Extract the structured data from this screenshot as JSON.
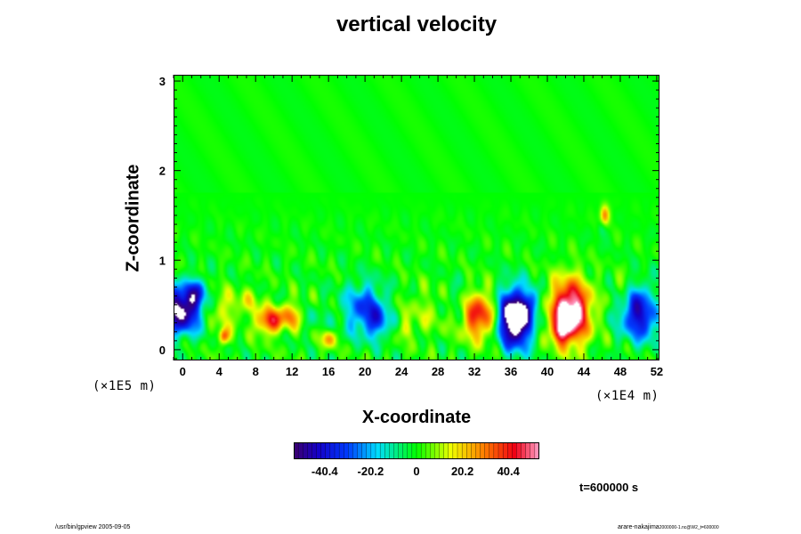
{
  "chart_data": {
    "type": "heatmap",
    "title": "vertical velocity",
    "xlabel": "X-coordinate",
    "ylabel": "Z-coordinate",
    "x_scale_label": "(×1E4 m)",
    "y_scale_label": "(×1E5 m)",
    "xlim": [
      -1,
      52.3
    ],
    "ylim": [
      -0.12,
      3.07
    ],
    "xticks": [
      0,
      4,
      8,
      12,
      16,
      20,
      24,
      28,
      32,
      36,
      40,
      44,
      48,
      52
    ],
    "yticks": [
      0,
      1,
      2,
      3
    ],
    "colorbar": {
      "range": [
        -54,
        54
      ],
      "ticks": [
        -40.4,
        -20.2,
        0,
        20.2,
        40.4
      ]
    },
    "features": [
      {
        "kind": "downdraft",
        "x": -0.2,
        "z": 0.45,
        "sx": 1.6,
        "sz": 0.18,
        "value": -60
      },
      {
        "kind": "downdraft",
        "x": 1.6,
        "z": 0.65,
        "sx": 0.7,
        "sz": 0.1,
        "value": -25
      },
      {
        "kind": "updraft",
        "x": 4.5,
        "z": 0.45,
        "sx": 1.4,
        "sz": 0.15,
        "value": 14
      },
      {
        "kind": "updraft",
        "x": 4.5,
        "z": 0.15,
        "sx": 0.4,
        "sz": 0.06,
        "value": 35
      },
      {
        "kind": "updraft",
        "x": 7.5,
        "z": 0.55,
        "sx": 1.0,
        "sz": 0.1,
        "value": 10
      },
      {
        "kind": "updraft",
        "x": 9.5,
        "z": 0.32,
        "sx": 1.0,
        "sz": 0.1,
        "value": 40
      },
      {
        "kind": "updraft",
        "x": 11.8,
        "z": 0.38,
        "sx": 0.9,
        "sz": 0.1,
        "value": 26
      },
      {
        "kind": "updraft",
        "x": 16.0,
        "z": 0.12,
        "sx": 0.6,
        "sz": 0.07,
        "value": 25
      },
      {
        "kind": "downdraft",
        "x": 14.5,
        "z": 0.35,
        "sx": 1.0,
        "sz": 0.12,
        "value": -6
      },
      {
        "kind": "downdraft",
        "x": 20.0,
        "z": 0.45,
        "sx": 1.6,
        "sz": 0.2,
        "value": -32
      },
      {
        "kind": "downdraft",
        "x": 21.5,
        "z": 0.3,
        "sx": 0.8,
        "sz": 0.12,
        "value": -20
      },
      {
        "kind": "updraft",
        "x": 24.5,
        "z": 0.22,
        "sx": 0.6,
        "sz": 0.07,
        "value": 12
      },
      {
        "kind": "updraft",
        "x": 26.5,
        "z": 0.42,
        "sx": 1.8,
        "sz": 0.18,
        "value": 9
      },
      {
        "kind": "updraft",
        "x": 32.5,
        "z": 0.38,
        "sx": 1.3,
        "sz": 0.18,
        "value": 42
      },
      {
        "kind": "downdraft",
        "x": 30.0,
        "z": 0.55,
        "sx": 1.0,
        "sz": 0.15,
        "value": -8
      },
      {
        "kind": "downdraft",
        "x": 36.5,
        "z": 0.35,
        "sx": 1.3,
        "sz": 0.22,
        "value": -78
      },
      {
        "kind": "downdraft",
        "x": 38.5,
        "z": 0.55,
        "sx": 0.6,
        "sz": 0.1,
        "value": -15
      },
      {
        "kind": "updraft",
        "x": 42.5,
        "z": 0.42,
        "sx": 1.5,
        "sz": 0.24,
        "value": 68
      },
      {
        "kind": "updraft",
        "x": 41.5,
        "z": 0.2,
        "sx": 0.7,
        "sz": 0.08,
        "value": 25
      },
      {
        "kind": "updraft",
        "x": 46.3,
        "z": 1.5,
        "sx": 0.35,
        "sz": 0.08,
        "value": 30
      },
      {
        "kind": "downdraft",
        "x": 46.0,
        "z": 1.35,
        "sx": 0.35,
        "sz": 0.07,
        "value": -10
      },
      {
        "kind": "downdraft",
        "x": 50.2,
        "z": 0.4,
        "sx": 1.5,
        "sz": 0.2,
        "value": -45
      },
      {
        "kind": "updraft",
        "x": 51.8,
        "z": 0.5,
        "sx": 0.5,
        "sz": 0.1,
        "value": 12
      },
      {
        "kind": "updraft",
        "x": 48.2,
        "z": 0.7,
        "sx": 0.6,
        "sz": 0.1,
        "value": 10
      }
    ],
    "time_label": "t=600000 s"
  },
  "footer": {
    "left": "/usr/bin/gpview 2005-09-05",
    "right": "arare-nakajima",
    "right_sub": "2000000-1.nc@W2_t=600000"
  }
}
